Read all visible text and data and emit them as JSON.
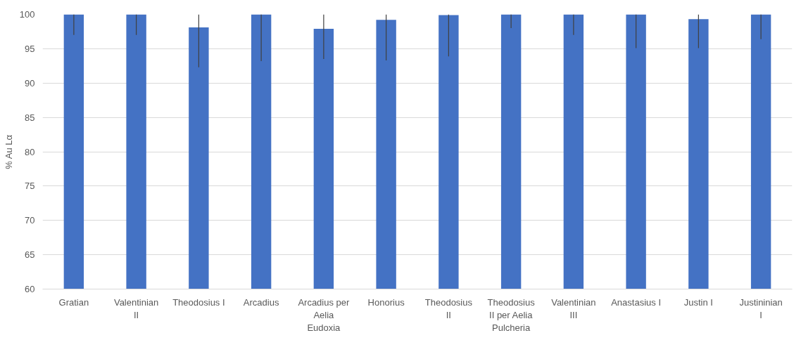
{
  "chart_data": {
    "type": "bar",
    "ylabel": "% Au Lα",
    "categories": [
      "Gratian",
      "Valentinian II",
      "Theodosius I",
      "Arcadius",
      "Arcadius per Aelia Eudoxia",
      "Honorius",
      "Theodosius II",
      "Theodosius II per Aelia Pulcheria",
      "Valentinian III",
      "Anastasius I",
      "Justin I",
      "Justininian I"
    ],
    "values": [
      100,
      100,
      98.1,
      100,
      97.9,
      99.2,
      99.9,
      100,
      100,
      100,
      99.3,
      100
    ],
    "errors": [
      [
        97.0,
        100
      ],
      [
        97.0,
        100
      ],
      [
        92.3,
        100
      ],
      [
        93.2,
        100
      ],
      [
        93.5,
        100
      ],
      [
        93.3,
        100
      ],
      [
        93.9,
        100
      ],
      [
        98.0,
        100
      ],
      [
        97.0,
        100
      ],
      [
        95.1,
        100
      ],
      [
        95.1,
        100
      ],
      [
        96.4,
        100
      ]
    ],
    "color": "#4472c4",
    "ylim": [
      60,
      100
    ],
    "yticks": [
      60,
      65,
      70,
      75,
      80,
      85,
      90,
      95,
      100
    ],
    "grid": "y"
  }
}
